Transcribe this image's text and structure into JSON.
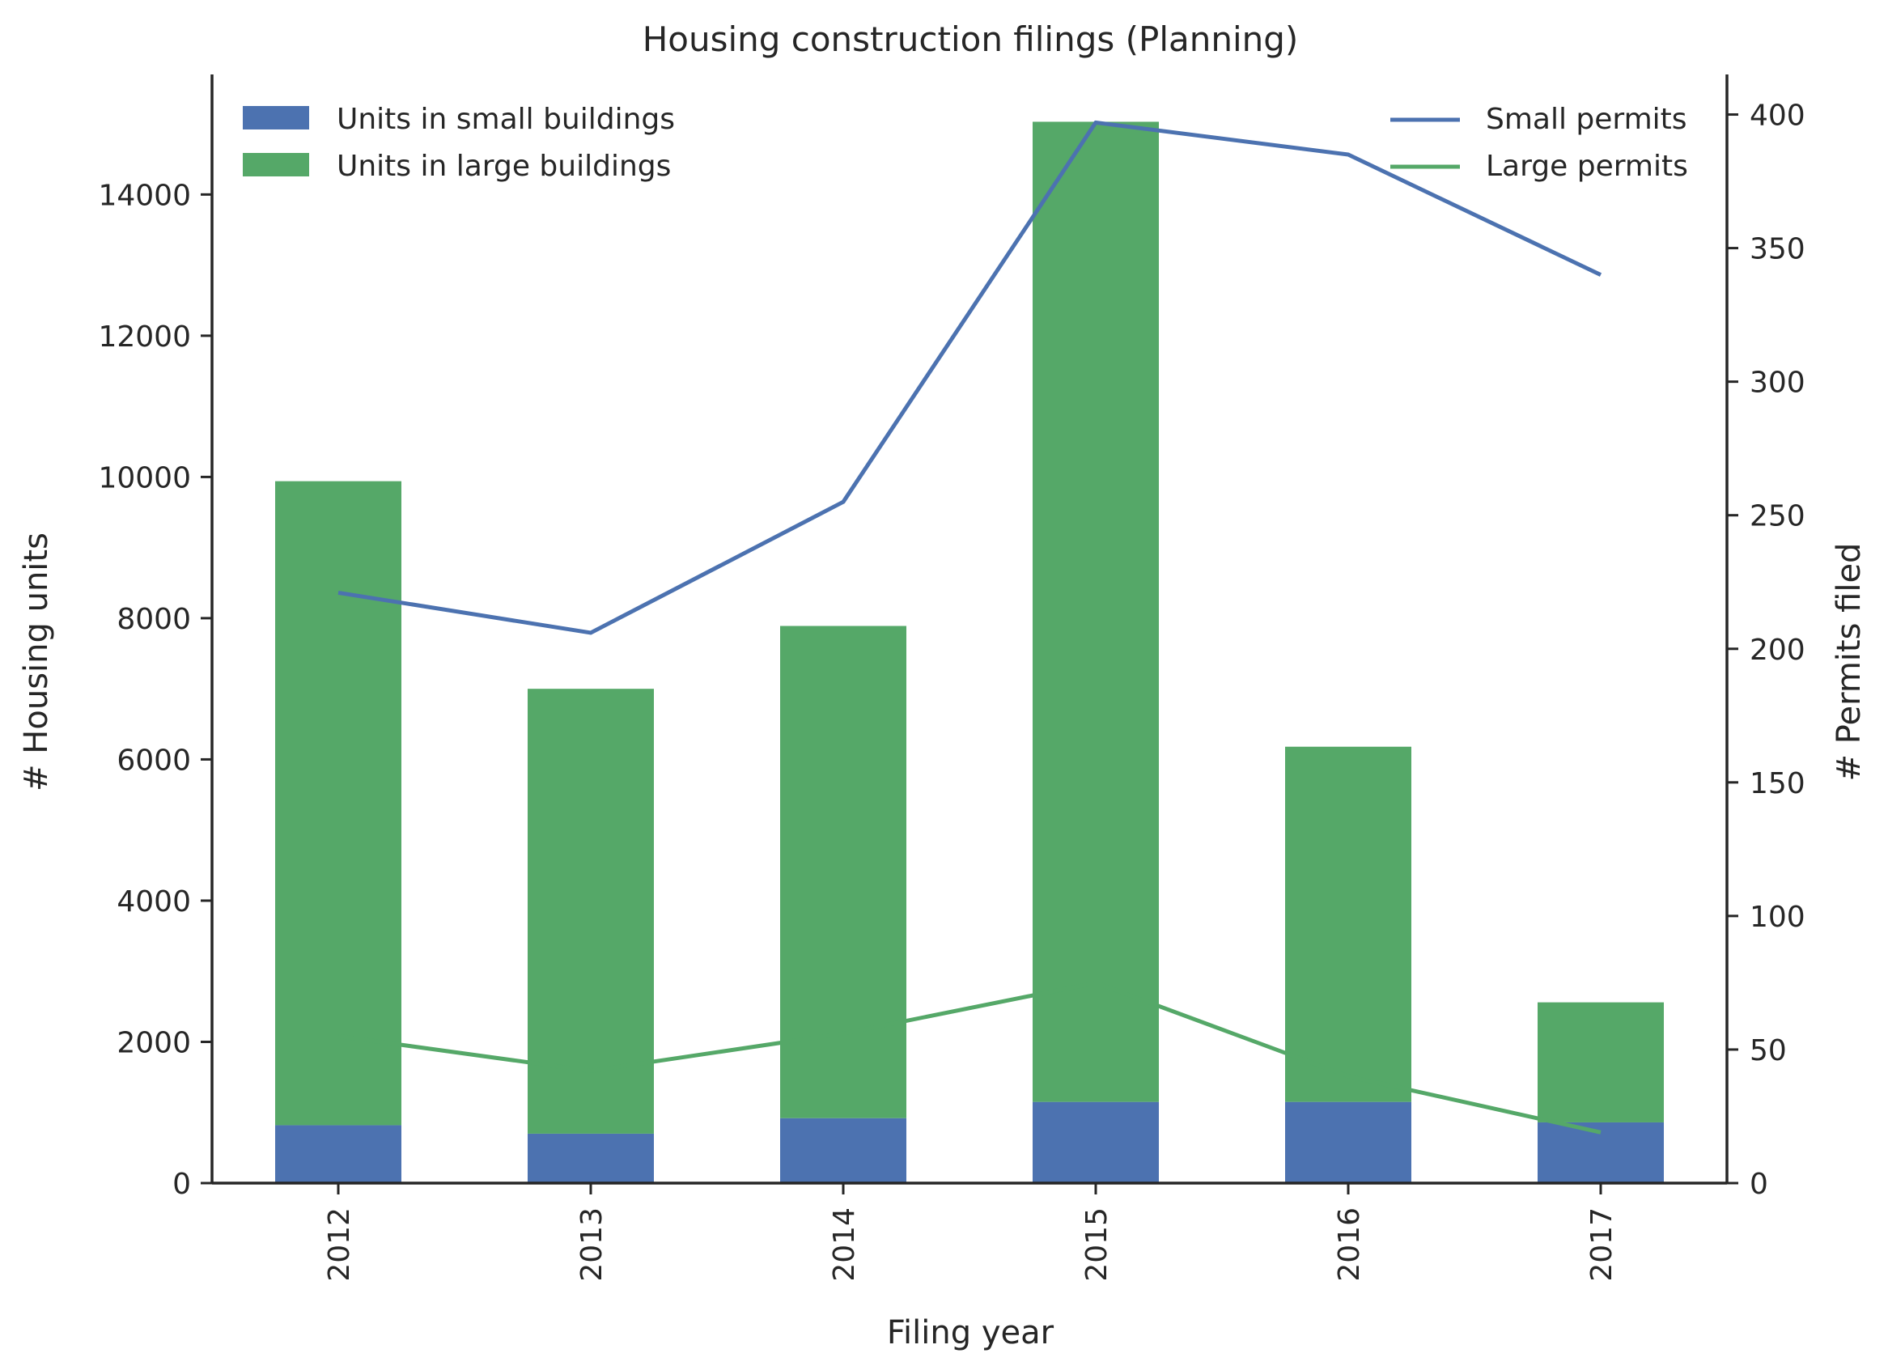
{
  "chart_data": {
    "type": "bar",
    "title": "Housing construction filings (Planning)",
    "xlabel": "Filing year",
    "ylabel": "# Housing units",
    "y2label": "# Permits filed",
    "categories": [
      "2012",
      "2013",
      "2014",
      "2015",
      "2016",
      "2017"
    ],
    "stacked": true,
    "ylim": [
      0,
      15700
    ],
    "yticks": [
      0,
      2000,
      4000,
      6000,
      8000,
      10000,
      12000,
      14000
    ],
    "y2lim": [
      0,
      415
    ],
    "y2ticks": [
      0,
      50,
      100,
      150,
      200,
      250,
      300,
      350,
      400
    ],
    "bar_series": [
      {
        "name": "Units in small buildings",
        "color": "#4c72b0",
        "values": [
          820,
          700,
          920,
          1150,
          1150,
          860
        ]
      },
      {
        "name": "Units in large buildings",
        "color": "#55a868",
        "values": [
          9120,
          6300,
          6970,
          13880,
          5030,
          1700
        ]
      }
    ],
    "line_series": [
      {
        "name": "Small permits",
        "color": "#4c72b0",
        "axis": "right",
        "values": [
          221,
          206,
          255,
          397,
          385,
          340
        ]
      },
      {
        "name": "Large permits",
        "color": "#55a868",
        "axis": "right",
        "values": [
          55,
          42,
          56,
          75,
          40,
          19
        ]
      }
    ],
    "legend_left_placement": "top-left",
    "legend_right_placement": "top-right",
    "grid": false
  }
}
